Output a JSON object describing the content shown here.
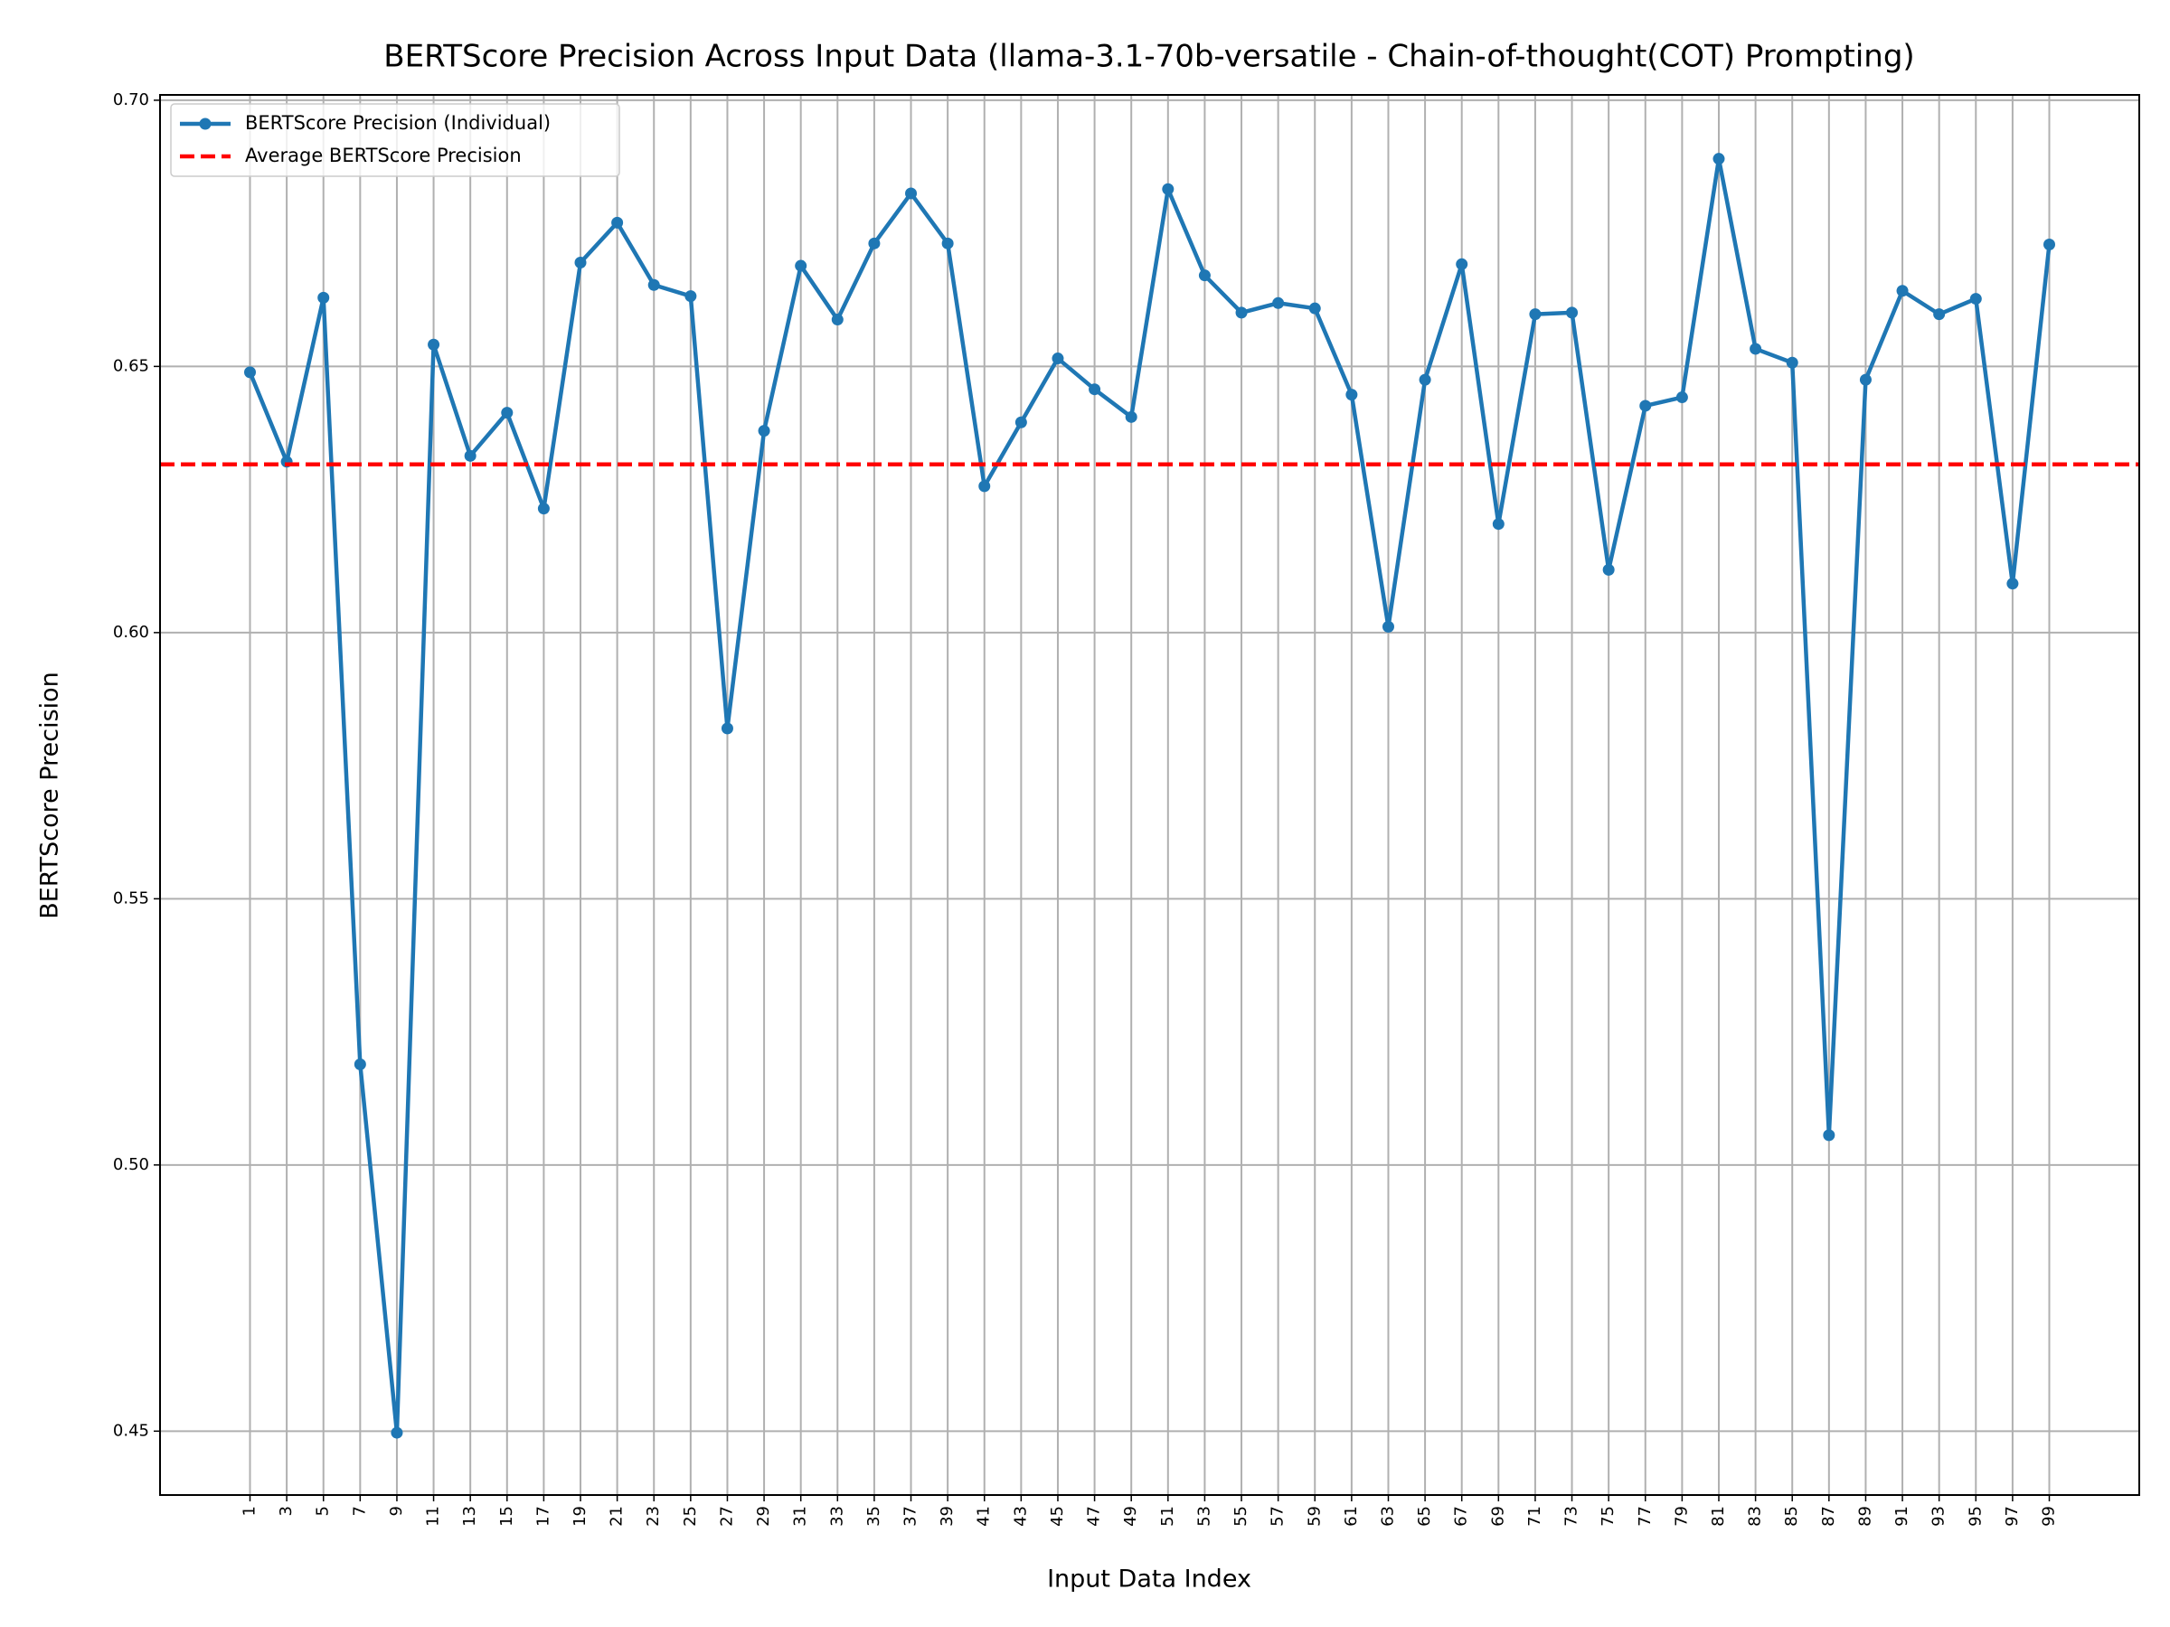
{
  "chart_data": {
    "type": "line",
    "title": "BERTScore Precision Across Input Data (llama-3.1-70b-versatile - Chain-of-thought(COT) Prompting)",
    "xlabel": "Input Data Index",
    "ylabel": "BERTScore Precision",
    "x": [
      1,
      3,
      5,
      7,
      9,
      11,
      13,
      15,
      17,
      19,
      21,
      23,
      25,
      27,
      29,
      31,
      33,
      35,
      37,
      39,
      41,
      43,
      45,
      47,
      49,
      51,
      53,
      55,
      57,
      59,
      61,
      63,
      65,
      67,
      69,
      71,
      73,
      75,
      77,
      79,
      81,
      83,
      85,
      87,
      89,
      91,
      93,
      95,
      97,
      99
    ],
    "series": [
      {
        "name": "BERTScore Precision (Individual)",
        "color": "#1f77b4",
        "values": [
          0.6489,
          0.6321,
          0.6629,
          0.5189,
          0.4497,
          0.6541,
          0.6332,
          0.6413,
          0.6233,
          0.6695,
          0.677,
          0.6653,
          0.6632,
          0.582,
          0.6379,
          0.6689,
          0.6588,
          0.6731,
          0.6825,
          0.6731,
          0.6275,
          0.6395,
          0.6515,
          0.6457,
          0.6405,
          0.6833,
          0.6671,
          0.6601,
          0.6619,
          0.6609,
          0.6447,
          0.6011,
          0.6475,
          0.6692,
          0.6204,
          0.6598,
          0.6601,
          0.6118,
          0.6426,
          0.6442,
          0.689,
          0.6533,
          0.6507,
          0.5056,
          0.6475,
          0.6642,
          0.6598,
          0.6627,
          0.6092,
          0.6729
        ]
      }
    ],
    "reference_lines": [
      {
        "name": "Average BERTScore Precision",
        "value": 0.6316,
        "color": "#ff0000",
        "style": "dashed"
      }
    ],
    "xlim": [
      -3.9,
      103.9
    ],
    "ylim": [
      0.438,
      0.701
    ],
    "xticks": [
      1,
      3,
      5,
      7,
      9,
      11,
      13,
      15,
      17,
      19,
      21,
      23,
      25,
      27,
      29,
      31,
      33,
      35,
      37,
      39,
      41,
      43,
      45,
      47,
      49,
      51,
      53,
      55,
      57,
      59,
      61,
      63,
      65,
      67,
      69,
      71,
      73,
      75,
      77,
      79,
      81,
      83,
      85,
      87,
      89,
      91,
      93,
      95,
      97,
      99
    ],
    "yticks": [
      0.45,
      {
        "value": 0.5,
        "label": "0.50"
      },
      0.55,
      {
        "value": 0.6,
        "label": "0.60"
      },
      0.65,
      {
        "value": 0.7,
        "label": "0.70"
      }
    ],
    "grid": true,
    "legend": "upper left"
  }
}
